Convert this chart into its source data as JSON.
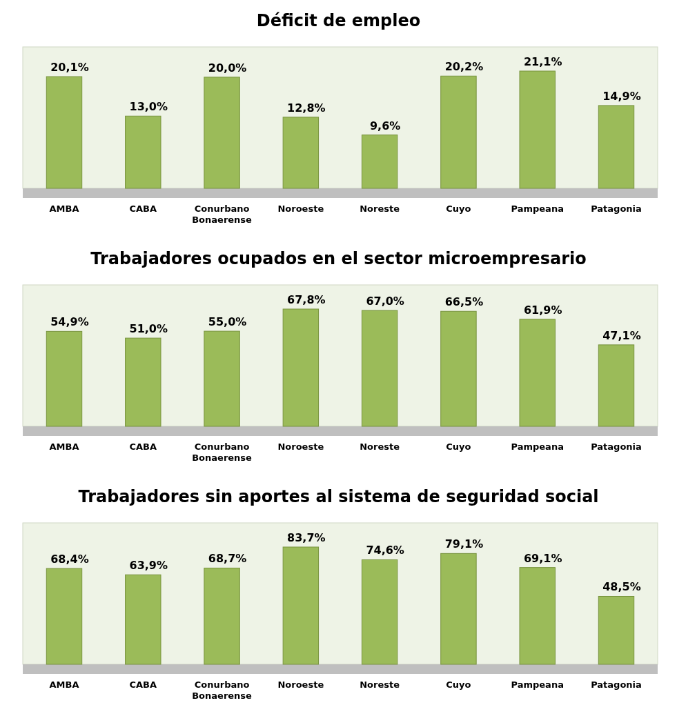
{
  "chart_data": [
    {
      "type": "bar",
      "title": "Déficit de empleo",
      "categories": [
        "AMBA",
        "CABA",
        "Conurbano Bonaerense",
        "Noroeste",
        "Noreste",
        "Cuyo",
        "Pampeana",
        "Patagonia"
      ],
      "values": [
        20.1,
        13.0,
        20.0,
        12.8,
        9.6,
        20.2,
        21.1,
        14.9
      ],
      "value_labels": [
        "20,1%",
        "13,0%",
        "20,0%",
        "12,8%",
        "9,6%",
        "20,2%",
        "21,1%",
        "14,9%"
      ],
      "color": "#9bbb59"
    },
    {
      "type": "bar",
      "title": "Trabajadores  ocupados en el sector microempresario",
      "categories": [
        "AMBA",
        "CABA",
        "Conurbano Bonaerense",
        "Noroeste",
        "Noreste",
        "Cuyo",
        "Pampeana",
        "Patagonia"
      ],
      "values": [
        54.9,
        51.0,
        55.0,
        67.8,
        67.0,
        66.5,
        61.9,
        47.1
      ],
      "value_labels": [
        "54,9%",
        "51,0%",
        "55,0%",
        "67,8%",
        "67,0%",
        "66,5%",
        "61,9%",
        "47,1%"
      ],
      "color": "#9bbb59"
    },
    {
      "type": "bar",
      "title": "Trabajadores sin aportes al sistema de seguridad social",
      "categories": [
        "AMBA",
        "CABA",
        "Conurbano Bonaerense",
        "Noroeste",
        "Noreste",
        "Cuyo",
        "Pampeana",
        "Patagonia"
      ],
      "values": [
        68.4,
        63.9,
        68.7,
        83.7,
        74.6,
        79.1,
        69.1,
        48.5
      ],
      "value_labels": [
        "68,4%",
        "63,9%",
        "68,7%",
        "83,7%",
        "74,6%",
        "79,1%",
        "69,1%",
        "48,5%"
      ],
      "color": "#9bbb59"
    }
  ]
}
